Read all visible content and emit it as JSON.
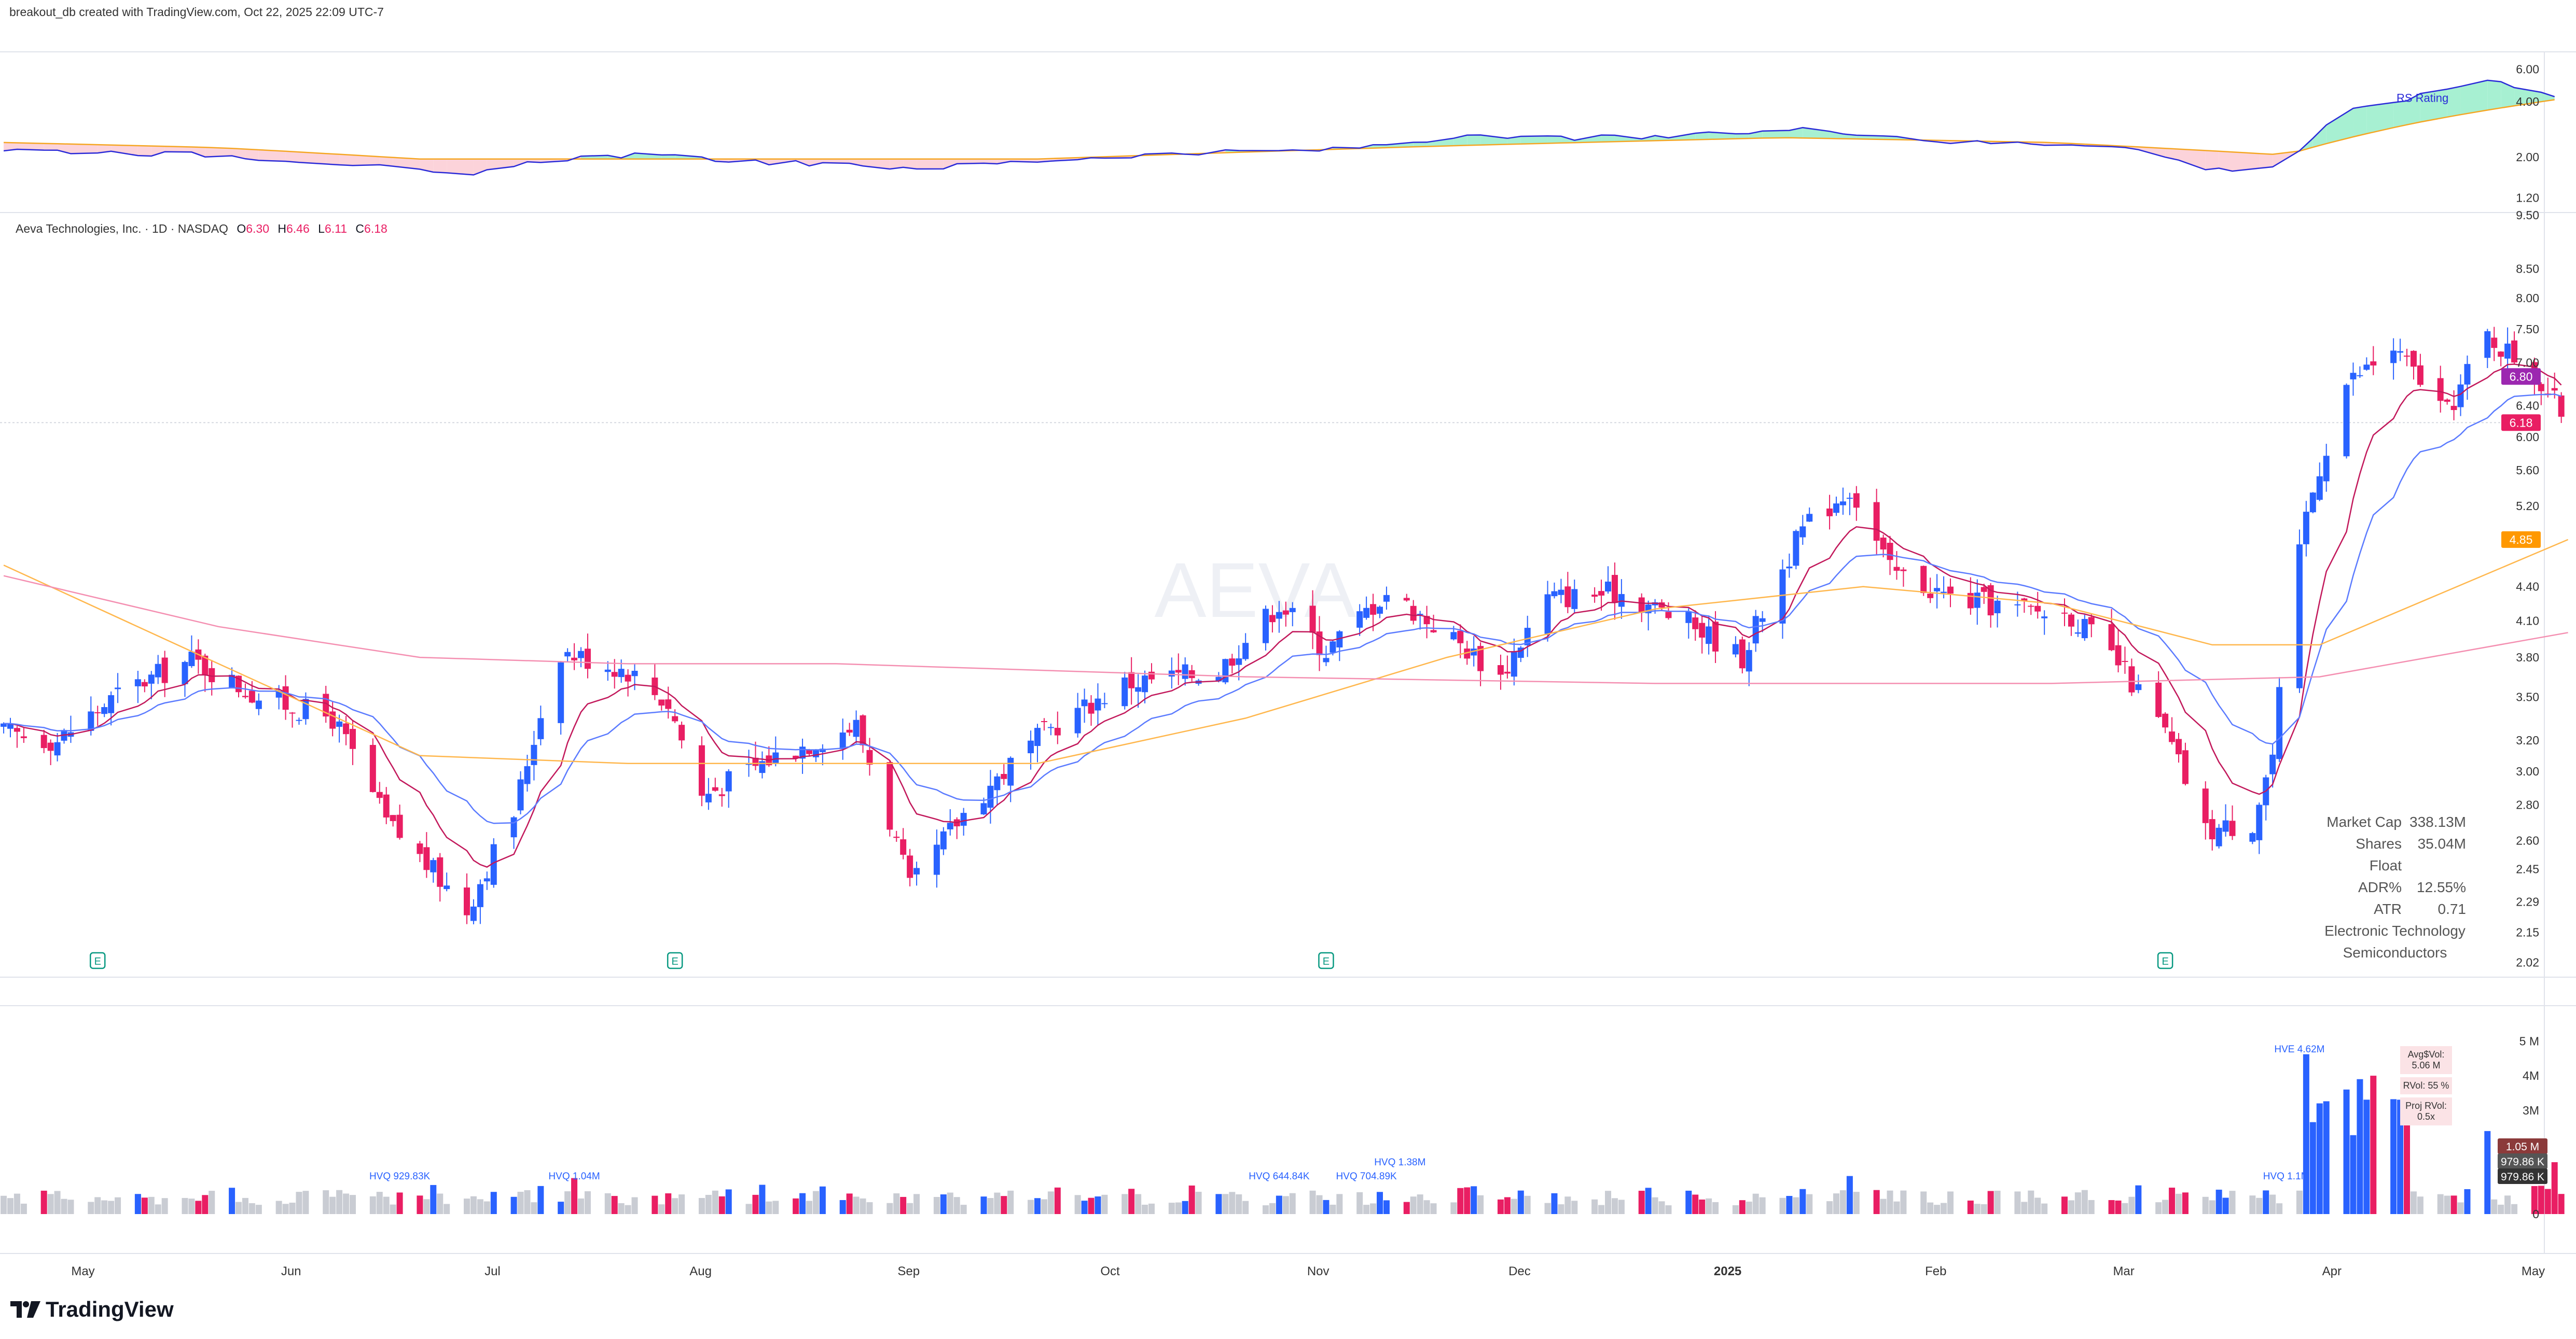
{
  "header": {
    "credit": "breakout_db created with TradingView.com, Oct 22, 2025 22:09 UTC-7"
  },
  "legend": {
    "symbol": "Aeva Technologies, Inc. · 1D · NASDAQ",
    "o_label": "O",
    "o": "6.30",
    "h_label": "H",
    "h": "6.46",
    "l_label": "L",
    "l": "6.11",
    "c_label": "C",
    "c": "6.18"
  },
  "watermark": "AEVA",
  "rs": {
    "label": "RS Rating"
  },
  "stats": {
    "market_cap_label": "Market Cap",
    "market_cap": "338.13M",
    "float_label": "Shares Float",
    "float": "35.04M",
    "adr_label": "ADR%",
    "adr": "12.55%",
    "atr_label": "ATR",
    "atr": "0.71",
    "sector": "Electronic Technology",
    "industry": "Semiconductors"
  },
  "volume_box": {
    "avg": "Avg$Vol: 5.06 M",
    "rvol": "RVol: 55 %",
    "proj": "Proj RVol: 0.5x"
  },
  "brand": "TradingView",
  "colors": {
    "up": "#2962ff",
    "down": "#e91e63",
    "ema_fast": "#c2185b",
    "ema_slow": "#5b7bff",
    "sma50": "#ffb74d",
    "sma200": "#f48fb1",
    "rs_line": "#2a2ad8",
    "rs_ma": "#f5a623"
  },
  "chart_data": [
    {
      "type": "candlestick",
      "title": "",
      "scale": "log",
      "price_ticks": [
        "9.50",
        "8.50",
        "8.00",
        "7.50",
        "7.00",
        "6.40",
        "6.00",
        "5.60",
        "5.20",
        "4.85",
        "4.40",
        "4.10",
        "3.80",
        "3.50",
        "3.20",
        "3.00",
        "2.80",
        "2.60",
        "2.45",
        "2.29",
        "2.15",
        "2.02"
      ],
      "ylim": [
        1.98,
        9.5
      ],
      "x_ticks": [
        "May",
        "Jun",
        "Jul",
        "Aug",
        "Sep",
        "Oct",
        "Nov",
        "Dec",
        "2025",
        "Feb",
        "Mar",
        "Apr",
        "May"
      ],
      "x_range": [
        "2024-05-01",
        "2025-05-10"
      ],
      "earnings_marker": "E",
      "earnings_dates": [
        "2024-05-14",
        "2024-08-08",
        "2024-11-13",
        "2025-03-18"
      ],
      "price_labels": [
        {
          "text": "6.80",
          "value": 6.8,
          "color": "#9c27b0"
        },
        {
          "text": "6.18",
          "value": 6.18,
          "color": "#e91e63"
        },
        {
          "text": "4.85",
          "value": 4.85,
          "color": "#ff9800"
        }
      ],
      "keypoints": [
        {
          "date": "2024-04-30",
          "close": 3.25
        },
        {
          "date": "2024-05-08",
          "close": 3.2
        },
        {
          "date": "2024-05-18",
          "close": 3.55
        },
        {
          "date": "2024-05-28",
          "close": 3.78
        },
        {
          "date": "2024-06-07",
          "close": 3.5
        },
        {
          "date": "2024-06-18",
          "close": 3.35
        },
        {
          "date": "2024-06-26",
          "close": 2.7
        },
        {
          "date": "2024-07-08",
          "close": 2.25
        },
        {
          "date": "2024-07-15",
          "close": 2.75
        },
        {
          "date": "2024-07-22",
          "close": 3.85
        },
        {
          "date": "2024-08-01",
          "close": 3.7
        },
        {
          "date": "2024-08-07",
          "close": 3.45
        },
        {
          "date": "2024-08-12",
          "close": 2.85
        },
        {
          "date": "2024-08-23",
          "close": 3.1
        },
        {
          "date": "2024-09-04",
          "close": 3.3
        },
        {
          "date": "2024-09-12",
          "close": 2.35
        },
        {
          "date": "2024-09-20",
          "close": 2.75
        },
        {
          "date": "2024-10-02",
          "close": 3.25
        },
        {
          "date": "2024-10-14",
          "close": 3.6
        },
        {
          "date": "2024-10-28",
          "close": 3.7
        },
        {
          "date": "2024-11-06",
          "close": 4.25
        },
        {
          "date": "2024-11-13",
          "close": 3.85
        },
        {
          "date": "2024-11-22",
          "close": 4.35
        },
        {
          "date": "2024-12-02",
          "close": 3.95
        },
        {
          "date": "2024-12-09",
          "close": 3.65
        },
        {
          "date": "2024-12-16",
          "close": 4.3
        },
        {
          "date": "2024-12-27",
          "close": 4.35
        },
        {
          "date": "2025-01-07",
          "close": 4.05
        },
        {
          "date": "2025-01-14",
          "close": 3.8
        },
        {
          "date": "2025-01-23",
          "close": 4.95
        },
        {
          "date": "2025-01-30",
          "close": 5.4
        },
        {
          "date": "2025-02-05",
          "close": 4.55
        },
        {
          "date": "2025-02-14",
          "close": 4.3
        },
        {
          "date": "2025-02-24",
          "close": 4.2
        },
        {
          "date": "2025-03-04",
          "close": 4.15
        },
        {
          "date": "2025-03-11",
          "close": 3.75
        },
        {
          "date": "2025-03-18",
          "close": 3.25
        },
        {
          "date": "2025-03-24",
          "close": 2.65
        },
        {
          "date": "2025-03-31",
          "close": 2.7
        },
        {
          "date": "2025-04-03",
          "close": 3.1
        },
        {
          "date": "2025-04-08",
          "close": 5.1
        },
        {
          "date": "2025-04-14",
          "close": 6.7
        },
        {
          "date": "2025-04-21",
          "close": 7.2
        },
        {
          "date": "2025-04-29",
          "close": 6.3
        },
        {
          "date": "2025-05-05",
          "close": 7.4
        },
        {
          "date": "2025-05-12",
          "close": 6.85
        },
        {
          "date": "2025-05-17",
          "close": 6.18
        }
      ],
      "sma50": [
        {
          "date": "2024-04-30",
          "v": 4.6
        },
        {
          "date": "2024-06-01",
          "v": 3.75
        },
        {
          "date": "2024-07-01",
          "v": 3.1
        },
        {
          "date": "2024-08-01",
          "v": 3.05
        },
        {
          "date": "2024-09-01",
          "v": 3.05
        },
        {
          "date": "2024-10-01",
          "v": 3.05
        },
        {
          "date": "2024-11-01",
          "v": 3.35
        },
        {
          "date": "2024-12-01",
          "v": 3.8
        },
        {
          "date": "2025-01-01",
          "v": 4.2
        },
        {
          "date": "2025-02-01",
          "v": 4.4
        },
        {
          "date": "2025-03-01",
          "v": 4.25
        },
        {
          "date": "2025-03-25",
          "v": 3.9
        },
        {
          "date": "2025-04-10",
          "v": 3.9
        },
        {
          "date": "2025-05-17",
          "v": 4.85
        }
      ],
      "sma200": [
        {
          "date": "2024-04-30",
          "v": 4.5
        },
        {
          "date": "2024-06-01",
          "v": 4.05
        },
        {
          "date": "2024-07-01",
          "v": 3.8
        },
        {
          "date": "2024-08-01",
          "v": 3.75
        },
        {
          "date": "2024-09-01",
          "v": 3.75
        },
        {
          "date": "2024-11-01",
          "v": 3.65
        },
        {
          "date": "2025-01-01",
          "v": 3.6
        },
        {
          "date": "2025-03-01",
          "v": 3.6
        },
        {
          "date": "2025-04-10",
          "v": 3.65
        },
        {
          "date": "2025-05-17",
          "v": 4.0
        }
      ]
    },
    {
      "type": "line",
      "title": "RS Rating",
      "scale": "log",
      "ticks": [
        "6.00",
        "4.00",
        "2.00",
        "1.20"
      ],
      "ylim": [
        1.1,
        7.0
      ],
      "series": [
        {
          "name": "RS Rating",
          "points": [
            {
              "date": "2024-04-30",
              "v": 2.2
            },
            {
              "date": "2024-06-01",
              "v": 2.05
            },
            {
              "date": "2024-06-20",
              "v": 1.85
            },
            {
              "date": "2024-07-08",
              "v": 1.55
            },
            {
              "date": "2024-07-20",
              "v": 1.95
            },
            {
              "date": "2024-08-01",
              "v": 2.05
            },
            {
              "date": "2024-09-01",
              "v": 1.8
            },
            {
              "date": "2024-09-15",
              "v": 1.75
            },
            {
              "date": "2024-10-15",
              "v": 2.05
            },
            {
              "date": "2024-11-15",
              "v": 2.2
            },
            {
              "date": "2024-12-01",
              "v": 2.55
            },
            {
              "date": "2025-01-01",
              "v": 2.55
            },
            {
              "date": "2025-01-25",
              "v": 2.85
            },
            {
              "date": "2025-02-15",
              "v": 2.4
            },
            {
              "date": "2025-03-10",
              "v": 2.35
            },
            {
              "date": "2025-03-25",
              "v": 1.7
            },
            {
              "date": "2025-04-05",
              "v": 1.8
            },
            {
              "date": "2025-04-14",
              "v": 3.5
            },
            {
              "date": "2025-04-25",
              "v": 4.3
            },
            {
              "date": "2025-05-05",
              "v": 5.3
            },
            {
              "date": "2025-05-17",
              "v": 4.2
            }
          ]
        },
        {
          "name": "RS MA",
          "points": [
            {
              "date": "2024-04-30",
              "v": 2.4
            },
            {
              "date": "2024-06-01",
              "v": 2.25
            },
            {
              "date": "2024-07-01",
              "v": 1.95
            },
            {
              "date": "2024-08-01",
              "v": 1.95
            },
            {
              "date": "2024-10-01",
              "v": 1.95
            },
            {
              "date": "2024-12-01",
              "v": 2.3
            },
            {
              "date": "2025-01-20",
              "v": 2.55
            },
            {
              "date": "2025-03-01",
              "v": 2.4
            },
            {
              "date": "2025-04-05",
              "v": 2.05
            },
            {
              "date": "2025-04-25",
              "v": 3.1
            },
            {
              "date": "2025-05-17",
              "v": 4.2
            }
          ]
        }
      ]
    },
    {
      "type": "bar",
      "title": "Volume",
      "ticks": [
        "5 M",
        "4M",
        "3M",
        "2M",
        "1M",
        "0"
      ],
      "ylim": [
        0,
        5.2
      ],
      "value_labels": [
        {
          "text": "1.05 M",
          "color": "#8b3a3a"
        },
        {
          "text": "979.86 K",
          "color": "#555555"
        },
        {
          "text": "979.86 K",
          "color": "#333333"
        }
      ],
      "annotations": [
        {
          "text": "HVQ 929.83K",
          "date": "2024-06-28"
        },
        {
          "text": "HVQ 1.04M",
          "date": "2024-07-24"
        },
        {
          "text": "HVQ 644.84K",
          "date": "2024-11-06"
        },
        {
          "text": "HVQ 704.89K",
          "date": "2024-11-19"
        },
        {
          "text": "HVQ 1.38M",
          "date": "2024-11-24"
        },
        {
          "text": "HVE 4.62M",
          "date": "2025-04-07"
        },
        {
          "text": "HVQ 1.1M",
          "date": "2025-04-05"
        }
      ],
      "spikes": [
        {
          "date": "2025-04-08",
          "v": 4.62
        },
        {
          "date": "2025-04-10",
          "v": 3.2
        },
        {
          "date": "2025-04-14",
          "v": 3.6
        },
        {
          "date": "2025-04-16",
          "v": 3.9
        },
        {
          "date": "2025-04-18",
          "v": 4.0
        },
        {
          "date": "2025-04-22",
          "v": 2.0
        },
        {
          "date": "2025-05-05",
          "v": 2.4
        },
        {
          "date": "2025-05-15",
          "v": 1.5
        },
        {
          "date": "2024-11-24",
          "v": 1.38
        },
        {
          "date": "2024-07-24",
          "v": 1.04
        },
        {
          "date": "2025-01-30",
          "v": 1.1
        },
        {
          "date": "2025-02-15",
          "v": 0.7
        }
      ]
    }
  ]
}
